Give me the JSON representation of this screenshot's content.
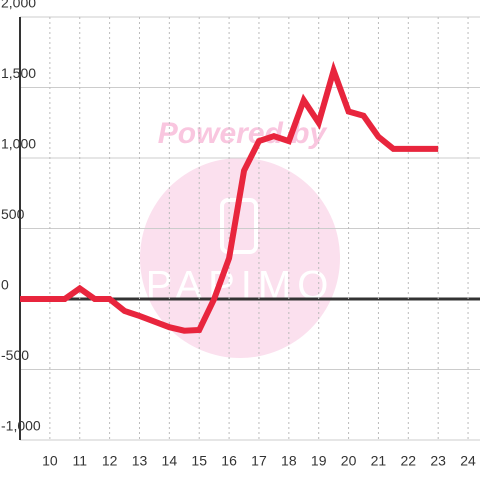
{
  "chart_data": {
    "type": "line",
    "watermark": "Powered by",
    "watermark_brand": "PAPIMO",
    "x": [
      9,
      10.5,
      11,
      11.5,
      12,
      12.5,
      13,
      13.5,
      14,
      14.5,
      15,
      15.5,
      16,
      16.5,
      17,
      17.5,
      18,
      18.5,
      19,
      19.5,
      20,
      20.5,
      21,
      21.5,
      22,
      22.5,
      23
    ],
    "series": [
      {
        "color": "#e8253d",
        "values": [
          0,
          0,
          75,
          0,
          0,
          -85,
          -120,
          -160,
          -200,
          -225,
          -220,
          0,
          290,
          910,
          1120,
          1155,
          1120,
          1410,
          1250,
          1620,
          1330,
          1300,
          1150,
          1065,
          1065,
          1065,
          1065
        ]
      }
    ],
    "xlim": [
      9,
      24.4
    ],
    "xticks": [
      10,
      11,
      12,
      13,
      14,
      15,
      16,
      17,
      18,
      19,
      20,
      21,
      22,
      23,
      24
    ],
    "ylim": [
      -1000,
      2000
    ],
    "yticks": [
      {
        "value": -1000,
        "label": "-1,000"
      },
      -500,
      0,
      500,
      {
        "value": 1000,
        "label": "1,000"
      },
      {
        "value": 1500,
        "label": "1,500"
      },
      {
        "value": 2000,
        "label": "2,000"
      }
    ],
    "grid": true
  }
}
